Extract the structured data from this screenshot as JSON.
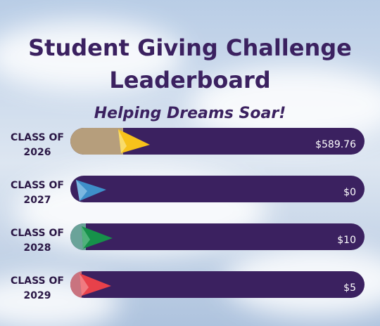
{
  "header": {
    "title_line1": "Student Giving Challenge",
    "title_line2": "Leaderboard",
    "subtitle": "Helping Dreams Soar!"
  },
  "rows": [
    {
      "label_line1": "CLASS OF",
      "label_line2": "2026",
      "amount": "$589.76"
    },
    {
      "label_line1": "CLASS OF",
      "label_line2": "2027",
      "amount": "$0"
    },
    {
      "label_line1": "CLASS OF",
      "label_line2": "2028",
      "amount": "$10"
    },
    {
      "label_line1": "CLASS OF",
      "label_line2": "2029",
      "amount": "$5"
    }
  ]
}
